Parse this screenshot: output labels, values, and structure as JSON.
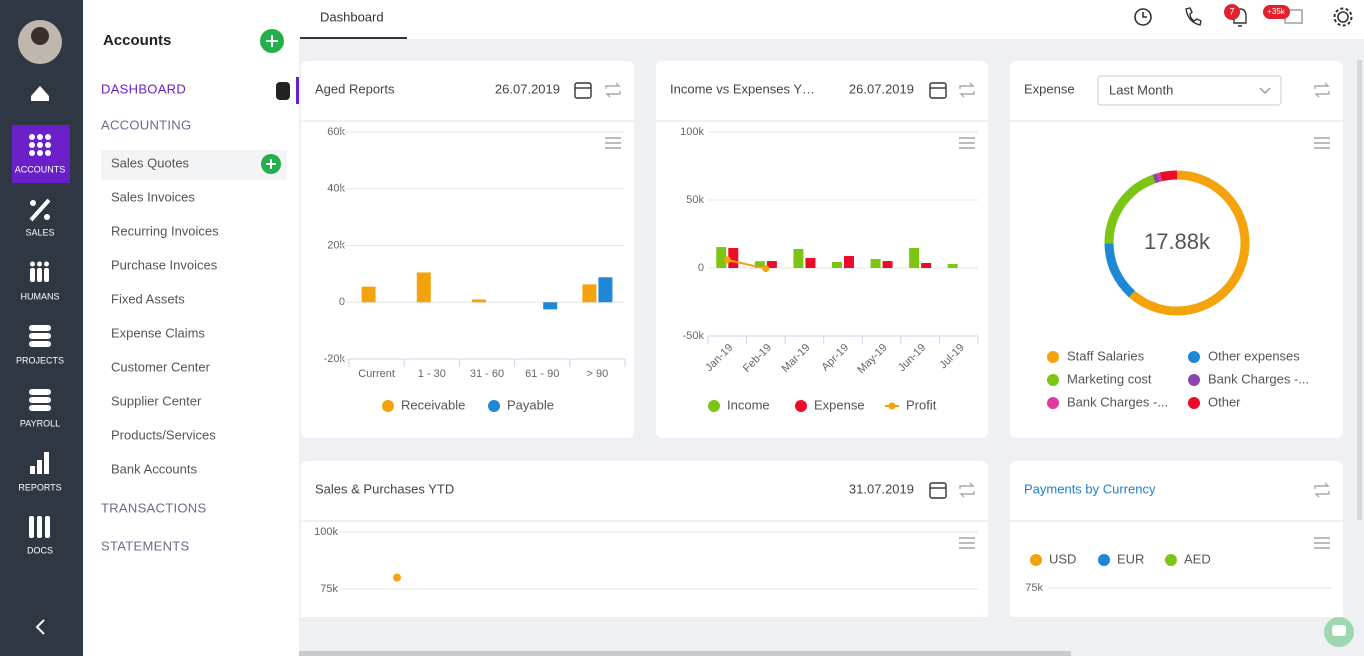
{
  "sidebar": {
    "items": [
      "ACCOUNTS",
      "SALES",
      "HUMANS",
      "PROJECTS",
      "PAYROLL",
      "REPORTS",
      "DOCS"
    ]
  },
  "panel": {
    "title": "Accounts",
    "sections": [
      "DASHBOARD",
      "ACCOUNTING"
    ],
    "items": [
      "Sales Quotes",
      "Sales Invoices",
      "Recurring Invoices",
      "Purchase Invoices",
      "Fixed Assets",
      "Expense Claims",
      "Customer Center",
      "Supplier Center",
      "Products/Services",
      "Bank Accounts"
    ],
    "more_sections": [
      "TRANSACTIONS",
      "STATEMENTS"
    ]
  },
  "topbar": {
    "tab": "Dashboard",
    "badges": [
      "7",
      "+35k"
    ]
  },
  "aged_reports": {
    "title": "Aged Reports",
    "date": "26.07.2019",
    "chart": {
      "type": "bar",
      "categories": [
        "Current",
        "1 - 30",
        "31 - 60",
        "61 - 90",
        "> 90"
      ],
      "series": [
        {
          "name": "Receivable",
          "color": "#f5a30c",
          "values": [
            5500,
            10500,
            1000,
            0,
            6300
          ]
        },
        {
          "name": "Payable",
          "color": "#1e88d6",
          "values": [
            0,
            0,
            0,
            -2500,
            8800
          ]
        }
      ],
      "ylim": [
        -20000,
        60000
      ],
      "yticks": [
        {
          "value": -20000,
          "label": "-20k"
        },
        0,
        {
          "value": 20000,
          "label": "20k"
        },
        {
          "value": 40000,
          "label": "40k"
        },
        {
          "value": 60000,
          "label": "60k"
        }
      ]
    }
  },
  "income_expenses": {
    "title": "Income vs Expenses Y…",
    "date": "26.07.2019",
    "chart": {
      "type": "bar",
      "categories": [
        "Jan-19",
        "Feb-19",
        "Mar-19",
        "Apr-19",
        "May-19",
        "Jun-19",
        "Jul-19"
      ],
      "series": [
        {
          "name": "Income",
          "color": "#7cc512",
          "values": [
            15400,
            5000,
            14000,
            4400,
            6600,
            14700,
            3000
          ]
        },
        {
          "name": "Expense",
          "color": "#ec0c2a",
          "values": [
            14700,
            5100,
            7400,
            8800,
            5100,
            3700,
            0
          ]
        },
        {
          "name": "Profit",
          "type": "line",
          "color": "#f5a30c",
          "values": [
            6000,
            -500,
            null,
            null,
            null,
            null,
            null
          ]
        }
      ],
      "ylim": [
        -50000,
        100000
      ],
      "yticks": [
        {
          "value": -50000,
          "label": "-50k"
        },
        0,
        {
          "value": 50000,
          "label": "50k"
        },
        {
          "value": 100000,
          "label": "100k"
        }
      ]
    }
  },
  "expense": {
    "title": "Expense",
    "period": "Last Month",
    "chart": {
      "type": "donut",
      "total_label": "17.88k",
      "categories": [
        "Staff Salaries",
        "Other expenses",
        "Marketing cost",
        "Bank Charges -...",
        "Bank Charges -...",
        "Other"
      ],
      "colors": [
        "#f5a30c",
        "#1e88d6",
        "#7cc512",
        "#8e44ad",
        "#e03a9e",
        "#ec0c2a"
      ],
      "values": [
        11000,
        2400,
        3500,
        200,
        100,
        680
      ]
    }
  },
  "sales_purchases": {
    "title": "Sales & Purchases YTD",
    "date": "31.07.2019",
    "chart": {
      "type": "line",
      "series": [
        {
          "color": "#f5a30c",
          "values": [
            80000
          ]
        }
      ],
      "ylim": [
        0,
        100000
      ],
      "yticks": [
        {
          "value": 75000,
          "label": "75k"
        },
        {
          "value": 100000,
          "label": "100k"
        }
      ]
    }
  },
  "payments": {
    "title": "Payments by Currency",
    "chart": {
      "type": "bar",
      "series": [
        {
          "name": "USD",
          "color": "#f5a30c"
        },
        {
          "name": "EUR",
          "color": "#1e88d6"
        },
        {
          "name": "AED",
          "color": "#7cc512"
        }
      ],
      "yticks": [
        {
          "value": 75000,
          "label": "75k"
        }
      ]
    }
  }
}
